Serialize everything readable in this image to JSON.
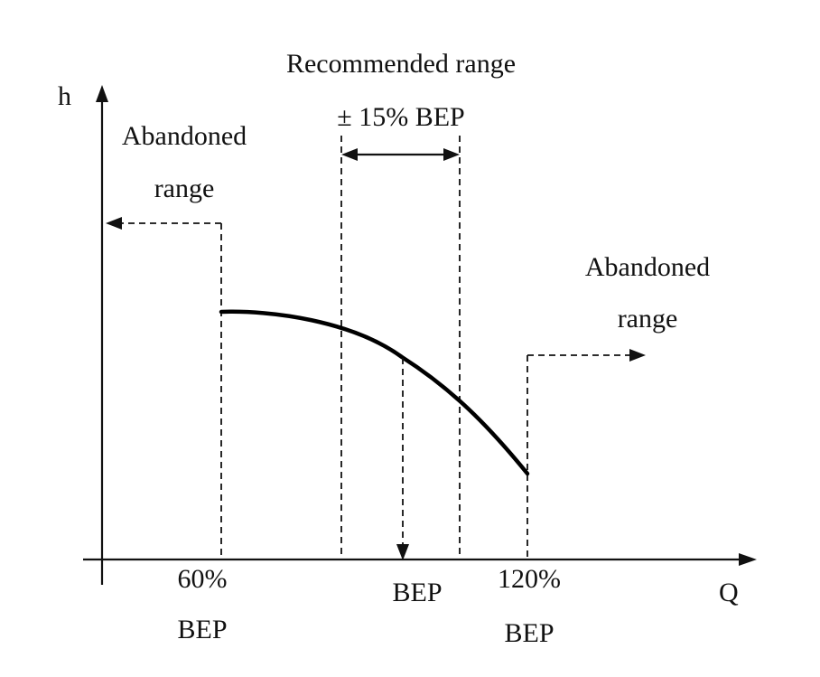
{
  "diagram": {
    "recommended_range_title": "Recommended range",
    "recommended_range_width": "± 15% BEP",
    "y_axis_label": "h",
    "x_axis_label": "Q",
    "abandoned_left": {
      "line1": "Abandoned",
      "line2": "range"
    },
    "abandoned_right": {
      "line1": "Abandoned",
      "line2": "range"
    },
    "tick_60": {
      "line1": "60%",
      "line2": "BEP"
    },
    "tick_bep": {
      "label": "BEP"
    },
    "tick_120": {
      "line1": "120%",
      "line2": "BEP"
    }
  }
}
